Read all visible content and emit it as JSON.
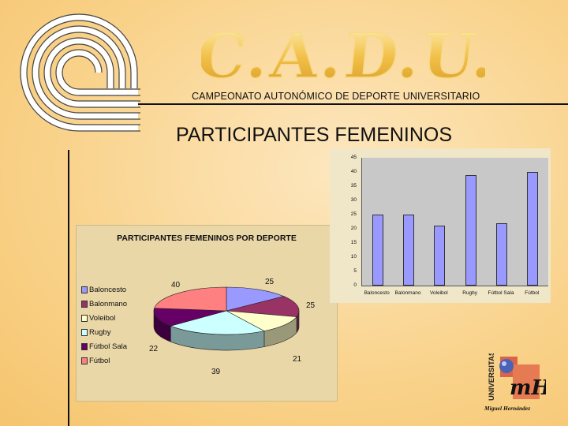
{
  "header": {
    "logo_text": "C.A.D.U.",
    "subtitle": "CAMPEONATO AUTONÓMICO DE DEPORTE UNIVERSITARIO"
  },
  "heading": "PARTICIPANTES FEMENINOS",
  "colors": {
    "background": "#f9d28a",
    "bar_fill": "#9999ff",
    "plot_background": "#c8c8c8",
    "pie_panel": "#ead7a8"
  },
  "university_logo": {
    "vertical_text": "UNIVERSITAS",
    "mark_text": "mH",
    "name": "Miguel Hernández"
  },
  "chart_data": [
    {
      "type": "pie",
      "title": "PARTICIPANTES FEMENINOS POR DEPORTE",
      "legend_position": "left",
      "categories": [
        "Baloncesto",
        "Balonmano",
        "Voleibol",
        "Rugby",
        "Fútbol Sala",
        "Fútbol"
      ],
      "values": [
        25,
        25,
        21,
        39,
        22,
        40
      ],
      "colors": [
        "#9999ff",
        "#993366",
        "#ffffcc",
        "#ccffff",
        "#660066",
        "#ff8080"
      ]
    },
    {
      "type": "bar",
      "title": "",
      "categories": [
        "Baloncesto",
        "Balonmano",
        "Voleibol",
        "Rugby",
        "Fútbol Sala",
        "Fútbol"
      ],
      "values": [
        25,
        25,
        21,
        39,
        22,
        40
      ],
      "ylim": [
        0,
        45
      ],
      "yticks": [
        "0",
        "5",
        "10",
        "15",
        "20",
        "25",
        "30",
        "35",
        "40",
        "45"
      ],
      "grid": false
    }
  ]
}
